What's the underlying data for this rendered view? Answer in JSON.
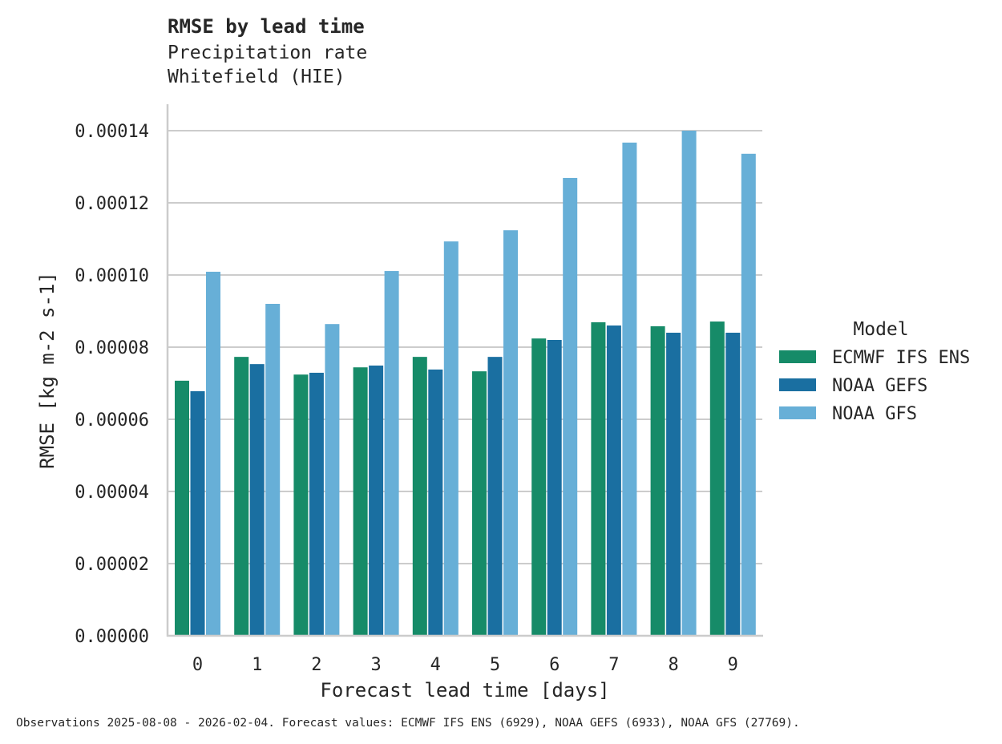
{
  "chart_data": {
    "type": "bar",
    "title": "RMSE by lead time",
    "subtitle_lines": [
      "Precipitation rate",
      "Whitefield (HIE)"
    ],
    "xlabel": "Forecast lead time [days]",
    "ylabel": "RMSE [kg m-2 s-1]",
    "categories": [
      "0",
      "1",
      "2",
      "3",
      "4",
      "5",
      "6",
      "7",
      "8",
      "9"
    ],
    "ylim": [
      0,
      0.000148
    ],
    "yticks": [
      0,
      2e-05,
      4e-05,
      6e-05,
      8e-05,
      0.0001,
      0.00012,
      0.00014
    ],
    "ytick_labels": [
      "0.00000",
      "0.00002",
      "0.00004",
      "0.00006",
      "0.00008",
      "0.00010",
      "0.00012",
      "0.00014"
    ],
    "grid": "horizontal",
    "legend": {
      "title": "Model",
      "placement": "right"
    },
    "series": [
      {
        "name": "ECMWF IFS ENS",
        "color": "#168b68",
        "values": [
          7.07e-05,
          7.73e-05,
          7.24e-05,
          7.44e-05,
          7.73e-05,
          7.33e-05,
          8.24e-05,
          8.69e-05,
          8.58e-05,
          8.71e-05
        ]
      },
      {
        "name": "NOAA GEFS",
        "color": "#1a6fa1",
        "values": [
          6.78e-05,
          7.53e-05,
          7.29e-05,
          7.49e-05,
          7.38e-05,
          7.73e-05,
          8.2e-05,
          8.6e-05,
          8.4e-05,
          8.4e-05
        ]
      },
      {
        "name": "NOAA GFS",
        "color": "#67afd7",
        "values": [
          0.0001009,
          9.2e-05,
          8.64e-05,
          0.0001011,
          0.0001093,
          0.0001124,
          0.0001269,
          0.0001367,
          0.00014,
          0.0001336
        ]
      }
    ],
    "footnote": "Observations 2025-08-08 - 2026-02-04. Forecast values: ECMWF IFS ENS (6929), NOAA GEFS (6933), NOAA GFS (27769)."
  }
}
